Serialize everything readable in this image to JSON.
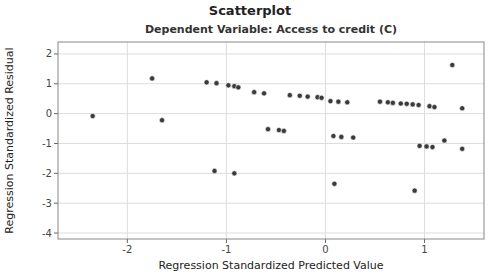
{
  "chart_data": {
    "type": "scatter",
    "title": "Scatterplot",
    "subtitle": "Dependent Variable: Access to credit (C)",
    "xlabel": "Regression Standardized Predicted Value",
    "ylabel": "Regression Standardized Residual",
    "x": [
      -2.35,
      -1.75,
      -1.65,
      -1.2,
      -1.1,
      -0.98,
      -0.92,
      -0.88,
      -0.72,
      -0.62,
      -0.36,
      -0.26,
      -0.18,
      -0.08,
      -0.04,
      0.05,
      0.13,
      0.22,
      0.55,
      0.63,
      0.68,
      0.76,
      0.82,
      0.88,
      0.94,
      1.05,
      1.1,
      1.28,
      1.38,
      -1.12,
      -0.92,
      -0.58,
      -0.47,
      -0.42,
      0.08,
      0.16,
      0.28,
      0.95,
      1.02,
      1.08,
      1.38,
      0.09,
      0.9,
      1.2
    ],
    "values": [
      -0.08,
      1.18,
      -0.22,
      1.05,
      1.02,
      0.95,
      0.92,
      0.88,
      0.72,
      0.68,
      0.62,
      0.6,
      0.57,
      0.55,
      0.53,
      0.42,
      0.4,
      0.38,
      0.4,
      0.38,
      0.36,
      0.34,
      0.33,
      0.31,
      0.29,
      0.25,
      0.22,
      1.63,
      0.18,
      -1.92,
      -2.0,
      -0.52,
      -0.55,
      -0.58,
      -0.75,
      -0.78,
      -0.8,
      -1.08,
      -1.1,
      -1.12,
      -1.18,
      -2.35,
      -2.58,
      -0.9
    ],
    "color": "#3a3a3a",
    "xlim": [
      -2.7,
      1.6
    ],
    "ylim": [
      -4.2,
      2.4
    ],
    "xticks": [
      -2,
      -1,
      0,
      1
    ],
    "yticks": [
      -4,
      -3,
      -2,
      -1,
      0,
      1,
      2
    ],
    "grid": true
  }
}
